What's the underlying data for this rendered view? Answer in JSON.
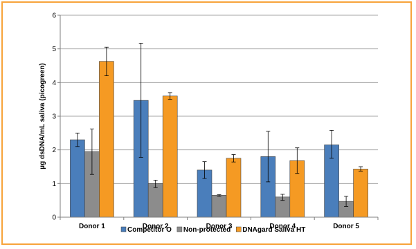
{
  "chart_data": {
    "type": "bar",
    "title": "",
    "xlabel": "",
    "ylabel": "µg dsDNA/mL saliva (picogreen)",
    "ylim": [
      0,
      6
    ],
    "yticks": [
      0,
      1,
      2,
      3,
      4,
      5,
      6
    ],
    "grid": "horizontal",
    "legend_position": "bottom",
    "categories": [
      "Donor 1",
      "Donor 2",
      "Donor 3",
      "Donor 4",
      "Donor 5"
    ],
    "series": [
      {
        "name": "Competitor O",
        "color": "#4a7ebb",
        "values": [
          2.3,
          3.47,
          1.4,
          1.8,
          2.15
        ],
        "err_low": [
          2.1,
          1.78,
          1.15,
          1.05,
          1.75
        ],
        "err_high": [
          2.5,
          5.17,
          1.65,
          2.55,
          2.58
        ]
      },
      {
        "name": "Non-protected",
        "color": "#8c8c8c",
        "values": [
          1.95,
          1.0,
          0.65,
          0.6,
          0.47
        ],
        "err_low": [
          1.27,
          0.88,
          0.62,
          0.5,
          0.32
        ],
        "err_high": [
          2.62,
          1.1,
          0.67,
          0.68,
          0.62
        ]
      },
      {
        "name": "DNAgard Saliva HT",
        "color": "#f59a23",
        "values": [
          4.63,
          3.6,
          1.75,
          1.68,
          1.43
        ],
        "err_low": [
          4.2,
          3.5,
          1.64,
          1.3,
          1.37
        ],
        "err_high": [
          5.05,
          3.7,
          1.86,
          2.06,
          1.5
        ]
      }
    ]
  }
}
